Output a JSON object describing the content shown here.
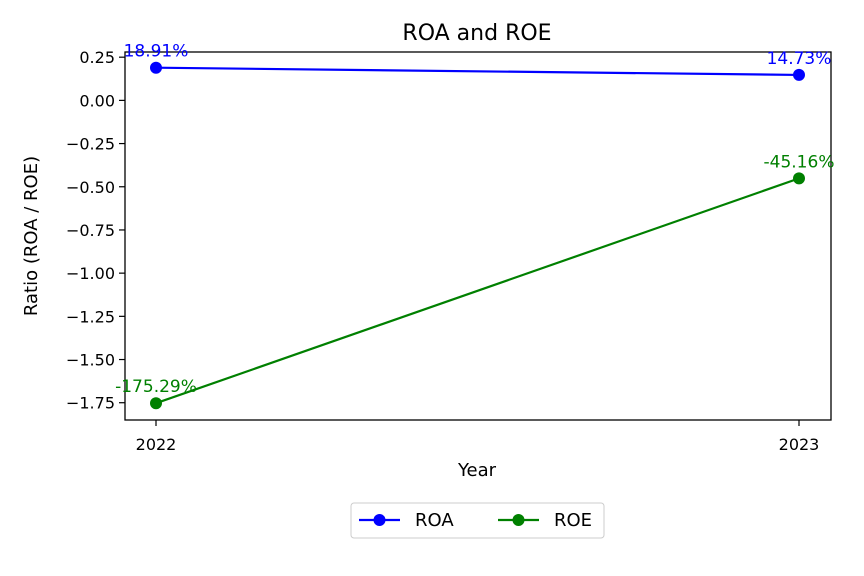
{
  "chart_data": {
    "type": "line",
    "title": "ROA and ROE",
    "xlabel": "Year",
    "ylabel": "Ratio (ROA / ROE)",
    "categories": [
      "2022",
      "2023"
    ],
    "ylim": [
      -1.85,
      0.28
    ],
    "yticks": [
      0.25,
      0.0,
      -0.25,
      -0.5,
      -0.75,
      -1.0,
      -1.25,
      -1.5,
      -1.75
    ],
    "ytick_labels": [
      "0.25",
      "0.00",
      "−0.25",
      "−0.50",
      "−0.75",
      "−1.00",
      "−1.25",
      "−1.50",
      "−1.75"
    ],
    "grid": false,
    "legend_position": "bottom-center",
    "series": [
      {
        "name": "ROA",
        "color": "#0000ff",
        "values": [
          0.1891,
          0.1473
        ],
        "labels": [
          "18.91%",
          "14.73%"
        ]
      },
      {
        "name": "ROE",
        "color": "#008000",
        "values": [
          -1.7529,
          -0.4516
        ],
        "labels": [
          "-175.29%",
          "-45.16%"
        ]
      }
    ]
  }
}
